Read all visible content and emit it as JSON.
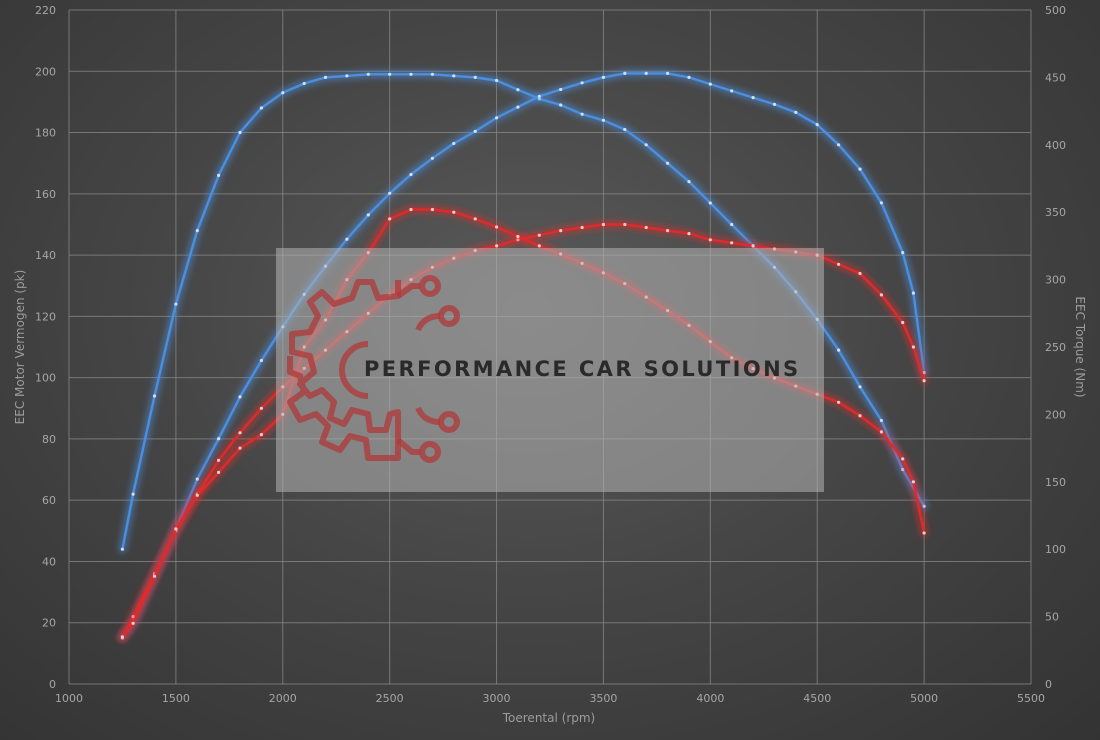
{
  "chart_data": {
    "type": "line",
    "xlabel": "Toerental (rpm)",
    "ylabel": "EEC Motor Vermogen (pk)",
    "y2label": "EEC Torque (Nm)",
    "xlim": [
      1000,
      5500
    ],
    "ylim": [
      0,
      220
    ],
    "y2lim": [
      0,
      500
    ],
    "x_ticks": [
      1000,
      1500,
      2000,
      2500,
      3000,
      3500,
      4000,
      4500,
      5000,
      5500
    ],
    "y_ticks": [
      0,
      20,
      40,
      60,
      80,
      100,
      120,
      140,
      160,
      180,
      200,
      220
    ],
    "y2_ticks": [
      0,
      50,
      100,
      150,
      200,
      250,
      300,
      350,
      400,
      450,
      500
    ],
    "grid": true,
    "series": [
      {
        "axis": "left",
        "color": "#4a8fe0",
        "points": [
          [
            1250,
            44
          ],
          [
            1300,
            62
          ],
          [
            1400,
            94
          ],
          [
            1500,
            124
          ],
          [
            1600,
            148
          ],
          [
            1700,
            166
          ],
          [
            1800,
            180
          ],
          [
            1900,
            188
          ],
          [
            2000,
            193
          ],
          [
            2100,
            196
          ],
          [
            2200,
            198
          ],
          [
            2300,
            198.5
          ],
          [
            2400,
            199
          ],
          [
            2500,
            199
          ],
          [
            2600,
            199
          ],
          [
            2700,
            199
          ],
          [
            2800,
            198.5
          ],
          [
            2900,
            198
          ],
          [
            3000,
            197
          ],
          [
            3100,
            194
          ],
          [
            3200,
            191
          ],
          [
            3300,
            189
          ],
          [
            3400,
            186
          ],
          [
            3500,
            184
          ],
          [
            3600,
            181
          ],
          [
            3700,
            176
          ],
          [
            3800,
            170
          ],
          [
            3900,
            164
          ],
          [
            4000,
            157
          ],
          [
            4100,
            150
          ],
          [
            4200,
            143
          ],
          [
            4300,
            136
          ],
          [
            4400,
            128
          ],
          [
            4500,
            119
          ],
          [
            4600,
            109
          ],
          [
            4700,
            97
          ],
          [
            4800,
            86
          ],
          [
            4900,
            70
          ],
          [
            5000,
            58
          ]
        ]
      },
      {
        "axis": "right",
        "color": "#4a8fe0",
        "points": [
          [
            1250,
            35
          ],
          [
            1300,
            45
          ],
          [
            1400,
            80
          ],
          [
            1500,
            115
          ],
          [
            1600,
            152
          ],
          [
            1700,
            182
          ],
          [
            1800,
            213
          ],
          [
            1900,
            240
          ],
          [
            2000,
            265
          ],
          [
            2100,
            289
          ],
          [
            2200,
            310
          ],
          [
            2300,
            330
          ],
          [
            2400,
            348
          ],
          [
            2500,
            364
          ],
          [
            2600,
            378
          ],
          [
            2700,
            390
          ],
          [
            2800,
            401
          ],
          [
            2900,
            410
          ],
          [
            3000,
            420
          ],
          [
            3100,
            428
          ],
          [
            3200,
            436
          ],
          [
            3300,
            441
          ],
          [
            3400,
            446
          ],
          [
            3500,
            450
          ],
          [
            3600,
            453
          ],
          [
            3700,
            453
          ],
          [
            3800,
            453
          ],
          [
            3900,
            450
          ],
          [
            4000,
            445
          ],
          [
            4100,
            440
          ],
          [
            4200,
            435
          ],
          [
            4300,
            430
          ],
          [
            4400,
            424
          ],
          [
            4500,
            415
          ],
          [
            4600,
            400
          ],
          [
            4700,
            382
          ],
          [
            4800,
            357
          ],
          [
            4900,
            320
          ],
          [
            4950,
            290
          ],
          [
            5000,
            231
          ]
        ]
      },
      {
        "axis": "left",
        "color": "#e02a2a",
        "points": [
          [
            1250,
            15
          ],
          [
            1300,
            22
          ],
          [
            1400,
            36
          ],
          [
            1500,
            50
          ],
          [
            1600,
            62
          ],
          [
            1700,
            73
          ],
          [
            1800,
            82
          ],
          [
            1900,
            90
          ],
          [
            2000,
            97
          ],
          [
            2100,
            103
          ],
          [
            2200,
            109
          ],
          [
            2300,
            115
          ],
          [
            2400,
            121
          ],
          [
            2500,
            127
          ],
          [
            2600,
            132
          ],
          [
            2700,
            136
          ],
          [
            2800,
            139
          ],
          [
            2900,
            141.5
          ],
          [
            3000,
            143
          ],
          [
            3100,
            145
          ],
          [
            3200,
            146.5
          ],
          [
            3300,
            148
          ],
          [
            3400,
            149
          ],
          [
            3500,
            150
          ],
          [
            3600,
            150
          ],
          [
            3700,
            149
          ],
          [
            3800,
            148
          ],
          [
            3900,
            147
          ],
          [
            4000,
            145
          ],
          [
            4100,
            144
          ],
          [
            4200,
            143
          ],
          [
            4300,
            142
          ],
          [
            4400,
            141
          ],
          [
            4500,
            140
          ],
          [
            4600,
            137
          ],
          [
            4700,
            134
          ],
          [
            4800,
            127
          ],
          [
            4900,
            118
          ],
          [
            4950,
            110
          ],
          [
            5000,
            99
          ]
        ]
      },
      {
        "axis": "right",
        "color": "#e02a2a",
        "points": [
          [
            1250,
            35
          ],
          [
            1300,
            45
          ],
          [
            1400,
            80
          ],
          [
            1500,
            115
          ],
          [
            1600,
            140
          ],
          [
            1700,
            157
          ],
          [
            1800,
            175
          ],
          [
            1900,
            185
          ],
          [
            2000,
            200
          ],
          [
            2100,
            250
          ],
          [
            2200,
            270
          ],
          [
            2300,
            300
          ],
          [
            2400,
            320
          ],
          [
            2500,
            345
          ],
          [
            2600,
            352
          ],
          [
            2700,
            352
          ],
          [
            2800,
            350
          ],
          [
            2900,
            345
          ],
          [
            3000,
            339
          ],
          [
            3100,
            332
          ],
          [
            3200,
            325
          ],
          [
            3300,
            319
          ],
          [
            3400,
            312
          ],
          [
            3500,
            305
          ],
          [
            3600,
            297
          ],
          [
            3700,
            287
          ],
          [
            3800,
            277
          ],
          [
            3900,
            266
          ],
          [
            4000,
            254
          ],
          [
            4100,
            242
          ],
          [
            4200,
            234
          ],
          [
            4300,
            227
          ],
          [
            4400,
            221
          ],
          [
            4500,
            215
          ],
          [
            4600,
            209
          ],
          [
            4700,
            199
          ],
          [
            4800,
            187
          ],
          [
            4900,
            167
          ],
          [
            4950,
            150
          ],
          [
            5000,
            112
          ]
        ]
      }
    ]
  },
  "watermark": {
    "text": "PERFORMANCE CAR SOLUTIONS"
  },
  "colors": {
    "logo": "#b03838"
  }
}
